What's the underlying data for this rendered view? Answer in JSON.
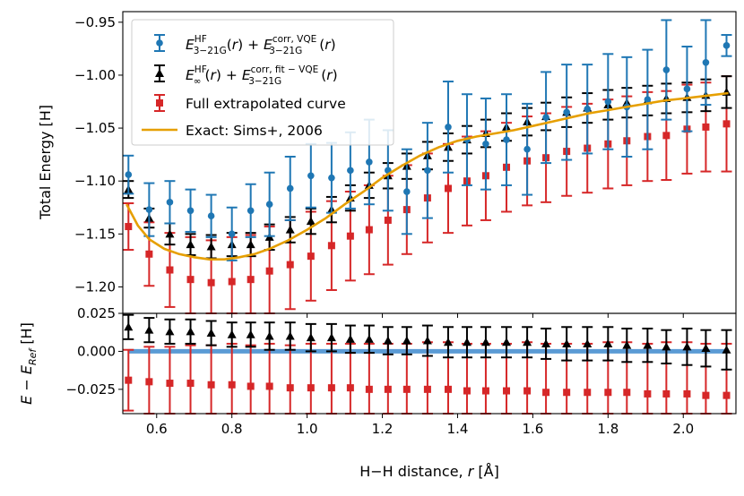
{
  "chart_data": [
    {
      "type": "scatter",
      "panel": "top",
      "ylabel": "Total Energy [H]",
      "xlim": [
        0.51,
        2.14
      ],
      "ylim": [
        -1.225,
        -0.94
      ],
      "xticks": [
        0.6,
        0.8,
        1.0,
        1.2,
        1.4,
        1.6,
        1.8,
        2.0
      ],
      "xtick_labels": [
        "0.6",
        "0.8",
        "1.0",
        "1.2",
        "1.4",
        "1.6",
        "1.8",
        "2.0"
      ],
      "yticks": [
        -1.2,
        -1.15,
        -1.1,
        -1.05,
        -1.0,
        -0.95
      ],
      "ytick_labels": [
        "−1.20",
        "−1.15",
        "−1.10",
        "−1.05",
        "−1.00",
        "−0.95"
      ],
      "grid": false,
      "legend_position": "top-left",
      "colors": {
        "blue": "#1f77b4",
        "black": "#000000",
        "red": "#d62728",
        "orange": "#e69f00"
      },
      "x": [
        0.525,
        0.58,
        0.635,
        0.69,
        0.745,
        0.8,
        0.85,
        0.9,
        0.955,
        1.01,
        1.065,
        1.115,
        1.165,
        1.215,
        1.265,
        1.32,
        1.375,
        1.425,
        1.475,
        1.53,
        1.585,
        1.635,
        1.69,
        1.745,
        1.8,
        1.85,
        1.905,
        1.955,
        2.01,
        2.06,
        2.115
      ],
      "series": [
        {
          "style": "circle-errorbar",
          "color": "#1f77b4",
          "y": [
            -1.094,
            -1.127,
            -1.12,
            -1.128,
            -1.133,
            -1.15,
            -1.128,
            -1.122,
            -1.107,
            -1.095,
            -1.097,
            -1.09,
            -1.082,
            -1.09,
            -1.11,
            -1.09,
            -1.049,
            -1.061,
            -1.065,
            -1.061,
            -1.07,
            -1.04,
            -1.035,
            -1.032,
            -1.025,
            -1.03,
            -1.023,
            -0.995,
            -1.013,
            -0.988,
            -0.972
          ],
          "err": [
            0.018,
            0.025,
            0.02,
            0.02,
            0.02,
            0.025,
            0.025,
            0.03,
            0.03,
            0.03,
            0.033,
            0.036,
            0.04,
            0.038,
            0.04,
            0.045,
            0.043,
            0.043,
            0.043,
            0.043,
            0.043,
            0.043,
            0.045,
            0.042,
            0.045,
            0.047,
            0.047,
            0.047,
            0.04,
            0.04,
            0.01
          ]
        },
        {
          "style": "triangle-errorbar",
          "color": "#000000",
          "y": [
            -1.108,
            -1.135,
            -1.15,
            -1.16,
            -1.162,
            -1.16,
            -1.16,
            -1.153,
            -1.146,
            -1.138,
            -1.127,
            -1.116,
            -1.104,
            -1.095,
            -1.086,
            -1.076,
            -1.068,
            -1.061,
            -1.055,
            -1.049,
            -1.044,
            -1.039,
            -1.035,
            -1.031,
            -1.028,
            -1.026,
            -1.024,
            -1.022,
            -1.021,
            -1.019,
            -1.016
          ],
          "err": [
            0.008,
            0.009,
            0.01,
            0.01,
            0.011,
            0.011,
            0.011,
            0.012,
            0.012,
            0.012,
            0.012,
            0.012,
            0.012,
            0.012,
            0.012,
            0.013,
            0.013,
            0.013,
            0.013,
            0.013,
            0.013,
            0.013,
            0.014,
            0.014,
            0.014,
            0.014,
            0.014,
            0.014,
            0.014,
            0.015,
            0.015
          ]
        },
        {
          "style": "square-errorbar",
          "color": "#d62728",
          "y": [
            -1.143,
            -1.169,
            -1.184,
            -1.193,
            -1.196,
            -1.195,
            -1.193,
            -1.185,
            -1.179,
            -1.171,
            -1.161,
            -1.152,
            -1.146,
            -1.137,
            -1.127,
            -1.116,
            -1.107,
            -1.1,
            -1.095,
            -1.087,
            -1.081,
            -1.078,
            -1.072,
            -1.069,
            -1.065,
            -1.062,
            -1.058,
            -1.057,
            -1.051,
            -1.049,
            -1.046
          ],
          "err": [
            0.022,
            0.03,
            0.035,
            0.04,
            0.04,
            0.042,
            0.042,
            0.042,
            0.042,
            0.042,
            0.042,
            0.042,
            0.042,
            0.042,
            0.042,
            0.042,
            0.042,
            0.042,
            0.042,
            0.042,
            0.042,
            0.042,
            0.042,
            0.042,
            0.042,
            0.042,
            0.042,
            0.042,
            0.042,
            0.042,
            0.045
          ]
        },
        {
          "style": "line",
          "color": "#e69f00",
          "x": [
            0.52,
            0.55,
            0.58,
            0.62,
            0.66,
            0.7,
            0.74,
            0.78,
            0.82,
            0.86,
            0.9,
            0.95,
            1.0,
            1.05,
            1.1,
            1.15,
            1.2,
            1.25,
            1.3,
            1.35,
            1.4,
            1.45,
            1.5,
            1.55,
            1.6,
            1.65,
            1.7,
            1.75,
            1.8,
            1.85,
            1.9,
            1.95,
            2.0,
            2.05,
            2.12
          ],
          "y": [
            -1.122,
            -1.142,
            -1.155,
            -1.164,
            -1.169,
            -1.172,
            -1.174,
            -1.174,
            -1.172,
            -1.169,
            -1.164,
            -1.156,
            -1.146,
            -1.135,
            -1.122,
            -1.11,
            -1.097,
            -1.086,
            -1.076,
            -1.068,
            -1.062,
            -1.058,
            -1.055,
            -1.052,
            -1.048,
            -1.044,
            -1.04,
            -1.036,
            -1.033,
            -1.03,
            -1.027,
            -1.024,
            -1.022,
            -1.02,
            -1.017
          ]
        }
      ],
      "legend": [
        {
          "style": "circle-errorbar",
          "color": "#1f77b4",
          "text_math": true,
          "text": "E3-21GHF(r) + E3-21Gcorr,VQE(r)"
        },
        {
          "style": "triangle-errorbar",
          "color": "#000000",
          "text_math": true,
          "text": "E∞HF(r) + E3-21Gcorr,fit-VQE(r)"
        },
        {
          "style": "square-errorbar",
          "color": "#d62728",
          "text": "Full extrapolated curve"
        },
        {
          "style": "line",
          "color": "#e69f00",
          "text": "Exact: Sims+, 2006"
        }
      ]
    },
    {
      "type": "scatter",
      "panel": "bottom",
      "xlabel_main": "H−H distance, ",
      "xlabel_var": "r",
      "xlabel_unit": " [Å]",
      "ylabel": "E − E_Ref [H]",
      "xlim": [
        0.51,
        2.14
      ],
      "ylim": [
        -0.041,
        0.025
      ],
      "yticks": [
        -0.025,
        0.0,
        0.025
      ],
      "ytick_labels": [
        "−0.025",
        "0.000",
        "0.025"
      ],
      "reference_line": {
        "y": 0.0,
        "color": "#5b9bd5"
      },
      "series": [
        {
          "style": "triangle-errorbar",
          "color": "#000000",
          "y": [
            0.016,
            0.014,
            0.013,
            0.013,
            0.012,
            0.011,
            0.011,
            0.01,
            0.01,
            0.009,
            0.009,
            0.008,
            0.008,
            0.007,
            0.007,
            0.007,
            0.006,
            0.006,
            0.006,
            0.006,
            0.006,
            0.005,
            0.005,
            0.005,
            0.005,
            0.004,
            0.004,
            0.003,
            0.003,
            0.002,
            0.001
          ],
          "err": [
            0.008,
            0.008,
            0.008,
            0.008,
            0.008,
            0.008,
            0.008,
            0.009,
            0.009,
            0.009,
            0.009,
            0.009,
            0.009,
            0.009,
            0.009,
            0.01,
            0.01,
            0.01,
            0.01,
            0.01,
            0.01,
            0.01,
            0.011,
            0.011,
            0.011,
            0.011,
            0.011,
            0.011,
            0.012,
            0.012,
            0.013
          ]
        },
        {
          "style": "square-errorbar",
          "color": "#d62728",
          "y": [
            -0.019,
            -0.02,
            -0.021,
            -0.021,
            -0.022,
            -0.022,
            -0.023,
            -0.023,
            -0.024,
            -0.024,
            -0.024,
            -0.024,
            -0.025,
            -0.025,
            -0.025,
            -0.025,
            -0.025,
            -0.026,
            -0.026,
            -0.026,
            -0.026,
            -0.027,
            -0.027,
            -0.027,
            -0.027,
            -0.027,
            -0.028,
            -0.028,
            -0.028,
            -0.029,
            -0.029
          ],
          "err": [
            0.02,
            0.023,
            0.024,
            0.025,
            0.026,
            0.027,
            0.027,
            0.028,
            0.028,
            0.029,
            0.029,
            0.029,
            0.03,
            0.03,
            0.03,
            0.031,
            0.031,
            0.031,
            0.031,
            0.031,
            0.032,
            0.032,
            0.032,
            0.032,
            0.033,
            0.033,
            0.033,
            0.034,
            0.034,
            0.034,
            0.034
          ]
        }
      ]
    }
  ]
}
